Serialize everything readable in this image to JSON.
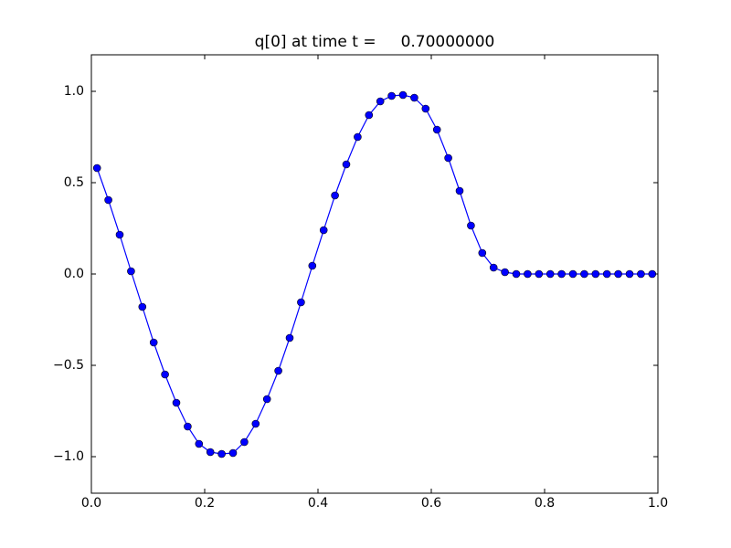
{
  "chart_data": {
    "type": "line",
    "title": "q[0] at time t =     0.70000000",
    "x": [
      0.01,
      0.03,
      0.05,
      0.07,
      0.09,
      0.11,
      0.13,
      0.15,
      0.17,
      0.19,
      0.21,
      0.23,
      0.25,
      0.27,
      0.29,
      0.31,
      0.33,
      0.35,
      0.37,
      0.39,
      0.41,
      0.43,
      0.45,
      0.47,
      0.49,
      0.51,
      0.53,
      0.55,
      0.57,
      0.59,
      0.61,
      0.63,
      0.65,
      0.67,
      0.69,
      0.71,
      0.73,
      0.75,
      0.77,
      0.79,
      0.81,
      0.83,
      0.85,
      0.87,
      0.89,
      0.91,
      0.93,
      0.95,
      0.97,
      0.99
    ],
    "series": [
      {
        "color": "#0000ff",
        "values": [
          0.58,
          0.405,
          0.215,
          0.015,
          -0.18,
          -0.375,
          -0.55,
          -0.705,
          -0.835,
          -0.93,
          -0.975,
          -0.985,
          -0.98,
          -0.92,
          -0.82,
          -0.685,
          -0.53,
          -0.35,
          -0.155,
          0.045,
          0.24,
          0.43,
          0.6,
          0.75,
          0.87,
          0.945,
          0.975,
          0.98,
          0.965,
          0.905,
          0.79,
          0.635,
          0.455,
          0.265,
          0.115,
          0.035,
          0.01,
          0,
          0,
          0,
          0,
          0,
          0,
          0,
          0,
          0,
          0,
          0,
          0,
          0
        ]
      }
    ],
    "xlim": [
      0,
      1
    ],
    "xticks": [
      {
        "value": 0,
        "label": "0.0"
      },
      0.2,
      0.4,
      0.6,
      0.8,
      {
        "value": 1,
        "label": "1.0"
      }
    ],
    "ylim": [
      -1.2,
      1.2
    ],
    "yticks": [
      {
        "value": -1,
        "label": "−1.0"
      },
      {
        "value": -0.5,
        "label": "−0.5"
      },
      {
        "value": 0,
        "label": "0.0"
      },
      0.5,
      {
        "value": 1,
        "label": "1.0"
      }
    ],
    "grid": false
  }
}
